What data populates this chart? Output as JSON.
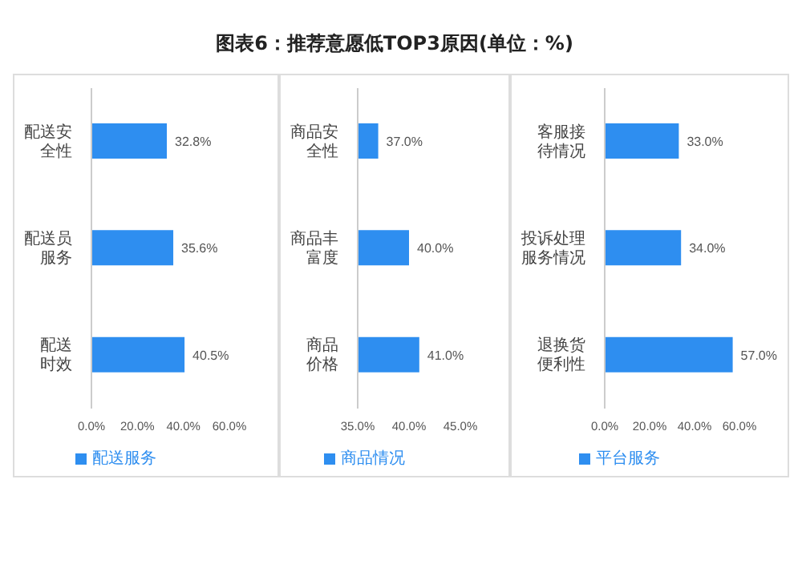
{
  "chart_data": [
    {
      "type": "bar",
      "orientation": "horizontal",
      "categories": [
        "配送安全性",
        "配送员服务",
        "配送时效"
      ],
      "series": [
        {
          "name": "配送服务",
          "color": "#2e8ef0",
          "values": [
            32.8,
            35.6,
            40.5
          ],
          "value_labels": [
            "32.8%",
            "35.6%",
            "40.5%"
          ]
        }
      ],
      "xlim": [
        0,
        60
      ],
      "xticks": [
        {
          "value": 0,
          "label": "0.0%"
        },
        {
          "value": 20,
          "label": "20.0%"
        },
        {
          "value": 40,
          "label": "40.0%"
        },
        {
          "value": 60,
          "label": "60.0%"
        }
      ],
      "legend": "bottom"
    },
    {
      "type": "bar",
      "title": "图表6：推荐意愿低TOP3原因(单位：%)",
      "orientation": "horizontal",
      "categories": [
        "商品安全性",
        "商品丰富度",
        "商品价格"
      ],
      "series": [
        {
          "name": "商品情况",
          "color": "#2e8ef0",
          "values": [
            37.0,
            40.0,
            41.0
          ],
          "value_labels": [
            "37.0%",
            "40.0%",
            "41.0%"
          ]
        }
      ],
      "xlim": [
        35,
        45
      ],
      "xticks": [
        {
          "value": 35,
          "label": "35.0%"
        },
        {
          "value": 40,
          "label": "40.0%"
        },
        {
          "value": 45,
          "label": "45.0%"
        }
      ],
      "legend": "bottom"
    },
    {
      "type": "bar",
      "orientation": "horizontal",
      "categories": [
        "客服接待情况",
        "投诉处理服务情况",
        "退换货便利性"
      ],
      "series": [
        {
          "name": "平台服务",
          "color": "#2e8ef0",
          "values": [
            33.0,
            34.0,
            57.0
          ],
          "value_labels": [
            "33.0%",
            "34.0%",
            "57.0%"
          ]
        }
      ],
      "xlim": [
        0,
        60
      ],
      "xticks": [
        {
          "value": 0,
          "label": "0.0%"
        },
        {
          "value": 20,
          "label": "20.0%"
        },
        {
          "value": 40,
          "label": "40.0%"
        },
        {
          "value": 60,
          "label": "60.0%"
        }
      ],
      "legend": "bottom"
    }
  ]
}
